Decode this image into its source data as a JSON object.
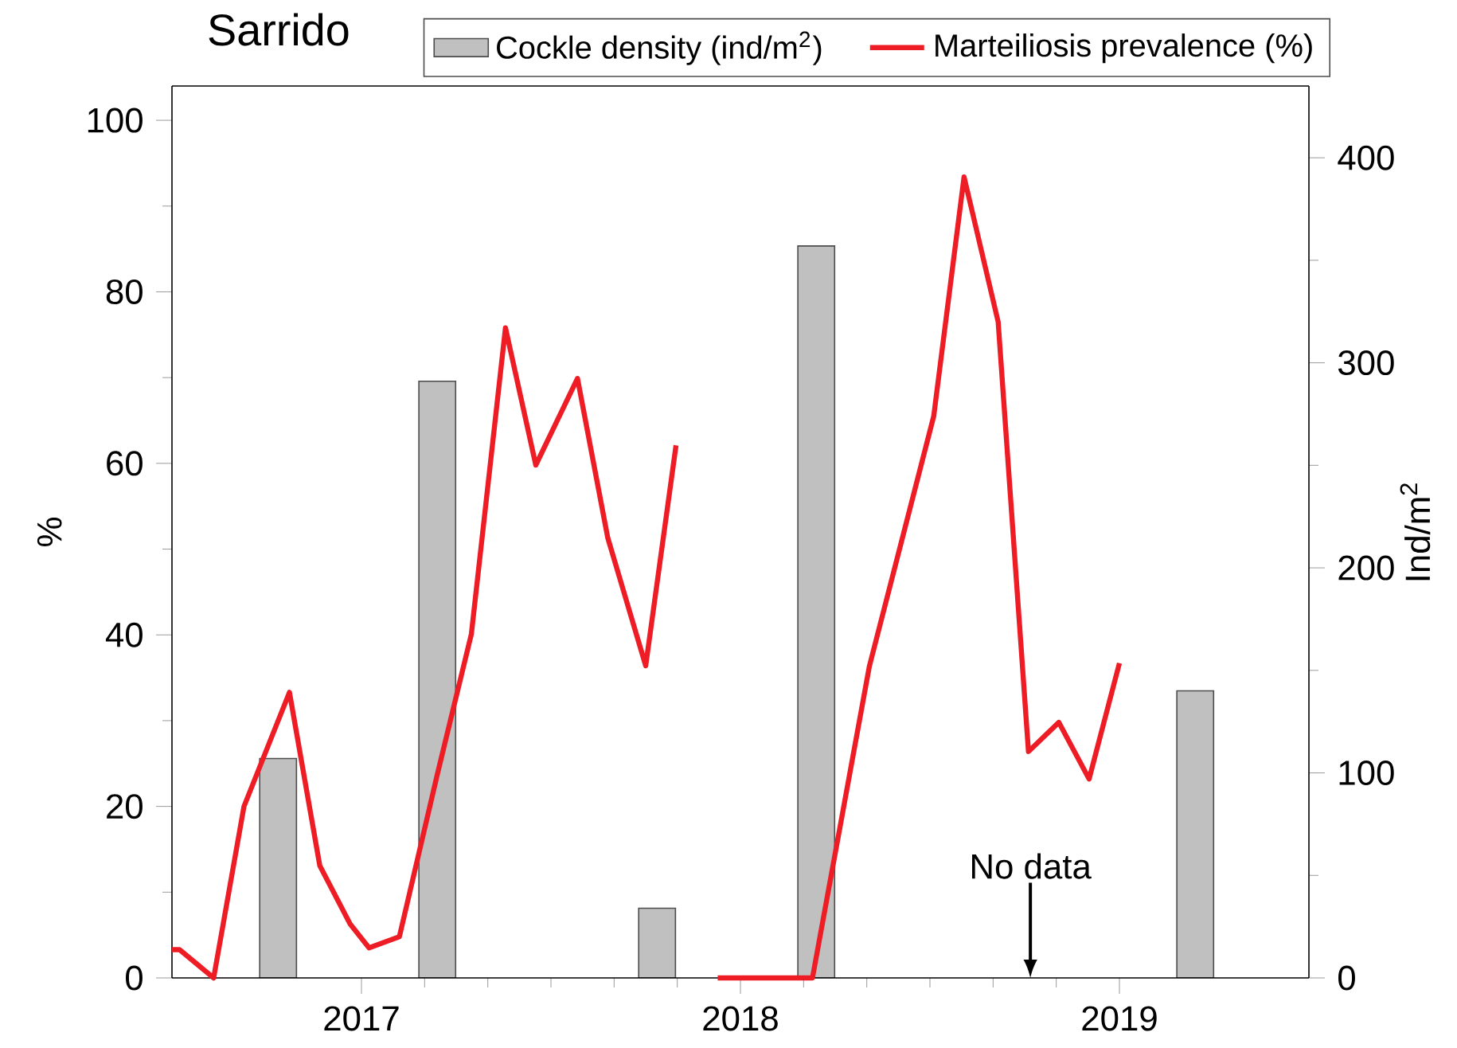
{
  "chart_data": {
    "type": "line",
    "title": "Sarrido",
    "ylabel": "%",
    "y2label": "Ind/m$^{2}$",
    "xlim": [
      2016.5,
      2019.5
    ],
    "xticks": [
      2017,
      2018,
      2019
    ],
    "ylim": [
      0,
      104
    ],
    "yticks": [
      0,
      20,
      40,
      60,
      80,
      100
    ],
    "y2lim": [
      0,
      435
    ],
    "y2ticks": [
      0,
      100,
      200,
      300,
      400
    ],
    "legend": "top",
    "annotations": [
      "No data"
    ],
    "series": [
      {
        "name": "Cockle density (ind/m$^{2}$)",
        "type": "bar",
        "axis": "y2",
        "color": "#c0c0c0",
        "x": [
          2016.78,
          2017.2,
          2017.78,
          2018.2,
          2019.2
        ],
        "values": [
          107,
          291,
          34,
          357,
          140
        ]
      },
      {
        "name": "Marteiliosis prevalence (%)",
        "color": "#ee1c25",
        "x": [
          2016.5,
          2016.52,
          2016.61,
          2016.69,
          2016.81,
          2016.89,
          2016.97,
          2017.02,
          2017.1,
          2017.2,
          2017.29,
          2017.38,
          2017.46,
          2017.57,
          2017.65,
          2017.75,
          2017.83,
          2017.88,
          2017.94,
          2018.19,
          2018.34,
          2018.51,
          2018.59,
          2018.68,
          2018.76,
          2018.84,
          2018.92,
          2019.0
        ],
        "values": [
          3.3,
          3.3,
          0,
          20,
          33.3,
          13.1,
          6.3,
          3.5,
          4.8,
          23.7,
          40.1,
          75.8,
          59.8,
          69.9,
          51.3,
          36.4,
          62.1,
          null,
          0,
          0,
          36.3,
          65.5,
          93.4,
          76.5,
          26.4,
          29.8,
          23.2,
          36.7
        ]
      }
    ]
  }
}
